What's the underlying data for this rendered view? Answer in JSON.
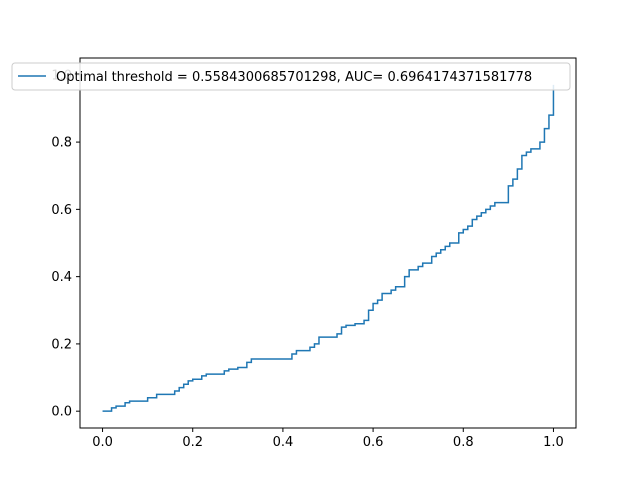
{
  "chart_data": {
    "type": "line",
    "title": "",
    "xlabel": "",
    "ylabel": "",
    "xlim": [
      -0.05,
      1.05
    ],
    "ylim": [
      -0.05,
      1.05
    ],
    "xticks": [
      0.0,
      0.2,
      0.4,
      0.6,
      0.8,
      1.0
    ],
    "xtick_labels": [
      "0.0",
      "0.2",
      "0.4",
      "0.6",
      "0.8",
      "1.0"
    ],
    "yticks": [
      0.0,
      0.2,
      0.4,
      0.6,
      0.8,
      1.0
    ],
    "ytick_labels": [
      "0.0",
      "0.2",
      "0.4",
      "0.6",
      "0.8",
      "1.0"
    ],
    "grid": false,
    "legend": {
      "placement": "top-left",
      "entries": [
        "Optimal threshold = 0.5584300685701298, AUC= 0.6964174371581778"
      ]
    },
    "series": [
      {
        "name": "Optimal threshold = 0.5584300685701298, AUC= 0.6964174371581778",
        "color": "#1f77b4",
        "step": true,
        "x": [
          0.0,
          0.02,
          0.03,
          0.05,
          0.06,
          0.1,
          0.12,
          0.16,
          0.17,
          0.18,
          0.19,
          0.2,
          0.22,
          0.23,
          0.27,
          0.28,
          0.3,
          0.32,
          0.33,
          0.41,
          0.42,
          0.43,
          0.46,
          0.47,
          0.48,
          0.52,
          0.53,
          0.54,
          0.56,
          0.58,
          0.59,
          0.6,
          0.61,
          0.62,
          0.64,
          0.65,
          0.67,
          0.68,
          0.7,
          0.71,
          0.73,
          0.74,
          0.75,
          0.76,
          0.77,
          0.79,
          0.8,
          0.81,
          0.82,
          0.83,
          0.84,
          0.85,
          0.86,
          0.87,
          0.88,
          0.9,
          0.91,
          0.92,
          0.93,
          0.94,
          0.95,
          0.96,
          0.97,
          0.98,
          0.99,
          1.0
        ],
        "y": [
          0.0,
          0.01,
          0.015,
          0.025,
          0.03,
          0.04,
          0.05,
          0.06,
          0.07,
          0.08,
          0.09,
          0.095,
          0.105,
          0.11,
          0.12,
          0.125,
          0.13,
          0.145,
          0.155,
          0.155,
          0.17,
          0.18,
          0.19,
          0.2,
          0.22,
          0.23,
          0.25,
          0.255,
          0.26,
          0.27,
          0.3,
          0.32,
          0.33,
          0.35,
          0.36,
          0.37,
          0.4,
          0.42,
          0.43,
          0.44,
          0.46,
          0.47,
          0.48,
          0.49,
          0.5,
          0.53,
          0.54,
          0.55,
          0.57,
          0.58,
          0.59,
          0.6,
          0.61,
          0.62,
          0.62,
          0.67,
          0.69,
          0.72,
          0.76,
          0.77,
          0.78,
          0.78,
          0.8,
          0.84,
          0.88,
          0.97
        ]
      }
    ]
  }
}
